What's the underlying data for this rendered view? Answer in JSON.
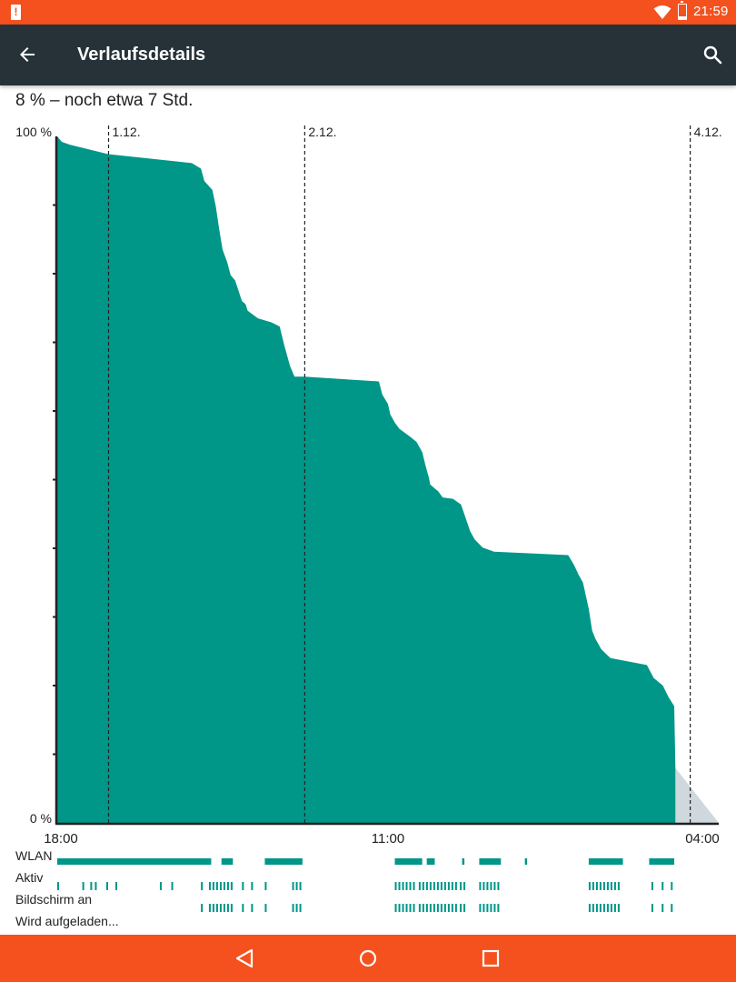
{
  "status_bar": {
    "time": "21:59",
    "battery_level_percent": 8
  },
  "app_bar": {
    "title": "Verlaufsdetails"
  },
  "summary": "8 % – noch etwa 7 Std.",
  "chart_data": {
    "type": "area",
    "title": "",
    "ytick_labels": [
      "100 %",
      "0 %"
    ],
    "ylim": [
      0,
      100
    ],
    "xtick_labels": [
      "18:00",
      "11:00",
      "04:00"
    ],
    "xlim_hours": [
      0,
      58
    ],
    "day_markers": [
      {
        "label": "1.12.",
        "hour": 4.5
      },
      {
        "label": "2.12.",
        "hour": 21.7
      },
      {
        "label": "4.12.",
        "hour": 55.5
      }
    ],
    "colors": {
      "fill": "#009688",
      "prediction": "#cfd8dc",
      "axis": "#212121"
    },
    "series": [
      {
        "points": [
          [
            0.0,
            100
          ],
          [
            0.4,
            99.2
          ],
          [
            1.1,
            98.8
          ],
          [
            4.5,
            97.4
          ],
          [
            10.7,
            96.3
          ],
          [
            11.8,
            96.1
          ],
          [
            12.6,
            95.3
          ],
          [
            12.9,
            93.5
          ],
          [
            13.6,
            92.2
          ],
          [
            13.9,
            89.8
          ],
          [
            14.2,
            86.5
          ],
          [
            14.5,
            83.5
          ],
          [
            14.9,
            81.7
          ],
          [
            15.2,
            79.8
          ],
          [
            15.6,
            79.0
          ],
          [
            16.0,
            77.0
          ],
          [
            16.2,
            76.0
          ],
          [
            16.5,
            75.6
          ],
          [
            16.7,
            74.6
          ],
          [
            17.6,
            73.5
          ],
          [
            18.8,
            72.9
          ],
          [
            19.5,
            72.3
          ],
          [
            19.9,
            69.6
          ],
          [
            20.4,
            66.6
          ],
          [
            20.8,
            65.0
          ],
          [
            21.7,
            65.0
          ],
          [
            28.2,
            64.3
          ],
          [
            28.5,
            62.4
          ],
          [
            29.0,
            61.0
          ],
          [
            29.2,
            59.5
          ],
          [
            29.6,
            58.3
          ],
          [
            30.0,
            57.4
          ],
          [
            30.9,
            56.3
          ],
          [
            31.5,
            55.5
          ],
          [
            32.0,
            54.0
          ],
          [
            32.3,
            52.0
          ],
          [
            32.6,
            50.2
          ],
          [
            32.7,
            49.3
          ],
          [
            33.1,
            48.7
          ],
          [
            33.4,
            48.3
          ],
          [
            33.8,
            47.4
          ],
          [
            34.7,
            47.2
          ],
          [
            35.4,
            46.4
          ],
          [
            36.2,
            42.5
          ],
          [
            36.6,
            41.3
          ],
          [
            37.3,
            40.1
          ],
          [
            38.3,
            39.5
          ],
          [
            44.8,
            39.0
          ],
          [
            45.3,
            37.6
          ],
          [
            45.7,
            36.2
          ],
          [
            46.1,
            35.0
          ],
          [
            46.6,
            31.2
          ],
          [
            46.9,
            28.0
          ],
          [
            47.2,
            26.8
          ],
          [
            47.7,
            25.3
          ],
          [
            48.5,
            24.0
          ],
          [
            51.7,
            23.0
          ],
          [
            52.3,
            21.1
          ],
          [
            53.1,
            20.0
          ],
          [
            53.6,
            18.3
          ],
          [
            54.1,
            17.0
          ],
          [
            54.2,
            8.0
          ]
        ],
        "prediction_end": [
          58.0,
          0
        ]
      }
    ],
    "timelines": [
      {
        "label": "WLAN",
        "style": "bar",
        "segments": [
          [
            0.0,
            13.5
          ],
          [
            14.4,
            15.4
          ],
          [
            18.2,
            21.5
          ],
          [
            29.6,
            32.0
          ],
          [
            32.4,
            33.1
          ],
          [
            35.5,
            35.7
          ],
          [
            37.0,
            38.9
          ],
          [
            41.0,
            41.2
          ],
          [
            46.6,
            49.6
          ],
          [
            51.9,
            54.1
          ]
        ]
      },
      {
        "label": "Aktiv",
        "style": "ticks",
        "segments": [
          [
            0.0,
            0.2
          ],
          [
            2.2,
            2.3
          ],
          [
            2.9,
            3.0
          ],
          [
            3.3,
            3.4
          ],
          [
            4.3,
            4.5
          ],
          [
            5.1,
            5.3
          ],
          [
            9.0,
            9.1
          ],
          [
            10.0,
            10.2
          ],
          [
            12.6,
            12.8
          ],
          [
            13.3,
            15.3
          ],
          [
            16.2,
            16.4
          ],
          [
            17.0,
            17.2
          ],
          [
            18.2,
            18.4
          ],
          [
            20.6,
            21.5
          ],
          [
            29.6,
            31.3
          ],
          [
            31.7,
            34.9
          ],
          [
            35.3,
            35.7
          ],
          [
            37.0,
            38.9
          ],
          [
            46.6,
            49.4
          ],
          [
            52.1,
            52.3
          ],
          [
            53.0,
            53.2
          ],
          [
            53.8,
            54.1
          ]
        ]
      },
      {
        "label": "Bildschirm an",
        "style": "ticks",
        "segments": [
          [
            12.6,
            12.8
          ],
          [
            13.3,
            15.3
          ],
          [
            16.2,
            16.4
          ],
          [
            17.0,
            17.2
          ],
          [
            18.2,
            18.4
          ],
          [
            20.6,
            21.5
          ],
          [
            29.6,
            31.3
          ],
          [
            31.7,
            34.9
          ],
          [
            35.3,
            35.7
          ],
          [
            37.0,
            38.9
          ],
          [
            46.6,
            49.4
          ],
          [
            52.1,
            52.3
          ],
          [
            53.0,
            53.2
          ],
          [
            53.8,
            54.1
          ]
        ]
      },
      {
        "label": "Wird aufgeladen...",
        "style": "ticks",
        "segments": []
      }
    ]
  }
}
